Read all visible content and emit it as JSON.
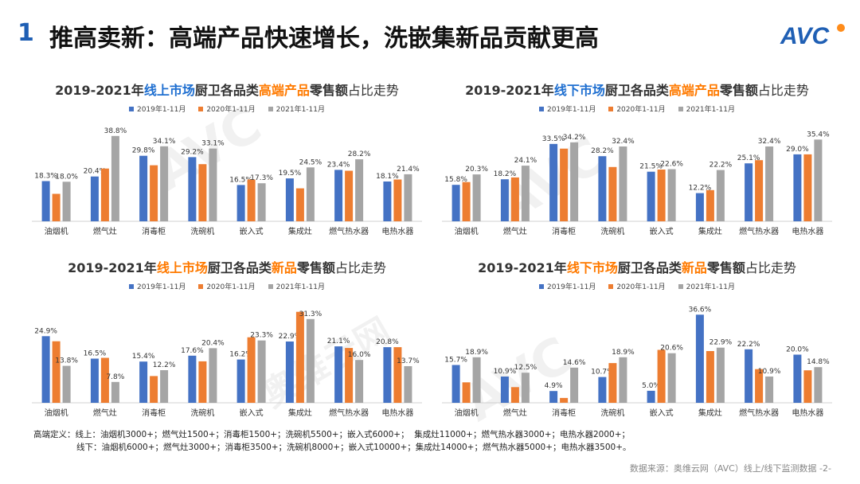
{
  "header": {
    "number": "1",
    "title": "推高卖新：高端产品快速增长，洗嵌集新品贡献更高",
    "logo_text": "AVC"
  },
  "colors": {
    "s2019": "#4472c4",
    "s2020": "#ed7d31",
    "s2021": "#a5a5a5",
    "blue": "#1f6fd0",
    "orange": "#ff7a00"
  },
  "legend": [
    "2019年1-11月",
    "2020年1-11月",
    "2021年1-11月"
  ],
  "watermark": [
    "AVC",
    "奥维云网",
    "ALL VIEW CLOUD"
  ],
  "chart_data": [
    {
      "type": "bar",
      "title_parts": [
        "2019-2021年",
        "线上市场",
        "厨卫各品类",
        "高端产品",
        "零售额",
        "占比走势"
      ],
      "categories": [
        "油烟机",
        "燃气灶",
        "消毒柜",
        "洗碗机",
        "嵌入式",
        "集成灶",
        "燃气热水器",
        "电热水器"
      ],
      "series": [
        {
          "name": "2019年1-11月",
          "values": [
            18.3,
            20.4,
            29.8,
            29.2,
            16.5,
            19.5,
            23.4,
            18.1
          ],
          "labels": [
            "18.3%",
            "20.4%",
            "29.8%",
            "29.2%",
            "16.5%",
            "19.5%",
            "23.4%",
            "18.1%"
          ]
        },
        {
          "name": "2020年1-11月",
          "values": [
            12.5,
            24.0,
            25.5,
            26.0,
            19.0,
            15.0,
            23.0,
            19.0
          ],
          "labels": [
            "",
            "",
            "",
            "",
            "",
            "",
            "",
            ""
          ]
        },
        {
          "name": "2021年1-11月",
          "values": [
            18.0,
            38.8,
            34.1,
            33.1,
            17.3,
            24.5,
            28.2,
            21.4
          ],
          "labels": [
            "18.0%",
            "38.8%",
            "34.1%",
            "33.1%",
            "17.3%",
            "24.5%",
            "28.2%",
            "21.4%"
          ]
        }
      ],
      "ylim": [
        0,
        42
      ]
    },
    {
      "type": "bar",
      "title_parts": [
        "2019-2021年",
        "线下市场",
        "厨卫各品类",
        "高端产品",
        "零售额",
        "占比走势"
      ],
      "categories": [
        "油烟机",
        "燃气灶",
        "消毒柜",
        "洗碗机",
        "嵌入式",
        "集成灶",
        "燃气热水器",
        "电热水器"
      ],
      "series": [
        {
          "name": "2019年1-11月",
          "values": [
            15.8,
            18.2,
            33.5,
            28.2,
            21.5,
            12.2,
            25.1,
            29.0
          ],
          "labels": [
            "15.8%",
            "18.2%",
            "33.5%",
            "28.2%",
            "21.5%",
            "12.2%",
            "25.1%",
            "29.0%"
          ]
        },
        {
          "name": "2020年1-11月",
          "values": [
            17.0,
            19.0,
            31.5,
            23.5,
            22.4,
            13.5,
            26.5,
            29.0
          ],
          "labels": [
            "",
            "",
            "",
            "",
            "",
            "",
            "",
            ""
          ]
        },
        {
          "name": "2021年1-11月",
          "values": [
            20.3,
            24.1,
            34.2,
            32.4,
            22.6,
            22.2,
            32.4,
            35.4
          ],
          "labels": [
            "20.3%",
            "24.1%",
            "34.2%",
            "32.4%",
            "22.6%",
            "22.2%",
            "32.4%",
            "35.4%"
          ]
        }
      ],
      "ylim": [
        0,
        40
      ]
    },
    {
      "type": "bar",
      "title_parts": [
        "2019-2021年",
        "线上市场",
        "厨卫各品类",
        "新品",
        "零售额",
        "占比走势"
      ],
      "categories": [
        "油烟机",
        "燃气灶",
        "消毒柜",
        "洗碗机",
        "嵌入式",
        "集成灶",
        "燃气热水器",
        "电热水器"
      ],
      "series": [
        {
          "name": "2019年1-11月",
          "values": [
            24.9,
            16.5,
            15.4,
            17.6,
            16.2,
            22.9,
            21.1,
            20.8
          ],
          "labels": [
            "24.9%",
            "16.5%",
            "15.4%",
            "17.6%",
            "16.2%",
            "22.9%",
            "21.1%",
            "20.8%"
          ]
        },
        {
          "name": "2020年1-11月",
          "values": [
            23.0,
            16.8,
            10.0,
            15.5,
            24.5,
            34.0,
            20.5,
            20.8
          ],
          "labels": [
            "",
            "",
            "",
            "",
            "",
            "",
            "",
            ""
          ]
        },
        {
          "name": "2021年1-11月",
          "values": [
            13.8,
            7.8,
            12.2,
            20.4,
            23.3,
            31.3,
            16.0,
            13.7
          ],
          "labels": [
            "13.8%",
            "7.8%",
            "12.2%",
            "20.4%",
            "23.3%",
            "31.3%",
            "16.0%",
            "13.7%"
          ]
        }
      ],
      "ylim": [
        0,
        36
      ]
    },
    {
      "type": "bar",
      "title_parts": [
        "2019-2021年",
        "线下市场",
        "厨卫各品类",
        "新品",
        "零售额",
        "占比走势"
      ],
      "categories": [
        "油烟机",
        "燃气灶",
        "消毒柜",
        "洗碗机",
        "嵌入式",
        "集成灶",
        "燃气热水器",
        "电热水器"
      ],
      "series": [
        {
          "name": "2019年1-11月",
          "values": [
            15.7,
            10.9,
            4.9,
            10.7,
            5.0,
            36.6,
            22.2,
            20.0
          ],
          "labels": [
            "15.7%",
            "10.9%",
            "4.9%",
            "10.7%",
            "5.0%",
            "36.6%",
            "22.2%",
            "20.0%"
          ]
        },
        {
          "name": "2020年1-11月",
          "values": [
            8.5,
            6.5,
            2.0,
            16.5,
            22.0,
            21.5,
            14.0,
            13.5
          ],
          "labels": [
            "",
            "",
            "",
            "",
            "",
            "",
            "",
            ""
          ]
        },
        {
          "name": "2021年1-11月",
          "values": [
            18.9,
            12.5,
            14.6,
            18.9,
            20.6,
            22.9,
            10.9,
            14.8
          ],
          "labels": [
            "18.9%",
            "12.5%",
            "14.6%",
            "18.9%",
            "20.6%",
            "22.9%",
            "10.9%",
            "14.8%"
          ]
        }
      ],
      "ylim": [
        0,
        40
      ]
    }
  ],
  "footnote": {
    "label": "高端定义：",
    "online": "线上：油烟机3000+；燃气灶1500+；消毒柜1500+；洗碗机5500+；嵌入式6000+；  集成灶11000+；燃气热水器3000+；电热水器2000+；",
    "offline": "线下：油烟机6000+；燃气灶3000+；消毒柜3500+；洗碗机8000+；嵌入式10000+；集成灶14000+；燃气热水器5000+；电热水器3500+。"
  },
  "source": "数据来源：奥维云网（AVC）线上/线下监测数据  -2-"
}
